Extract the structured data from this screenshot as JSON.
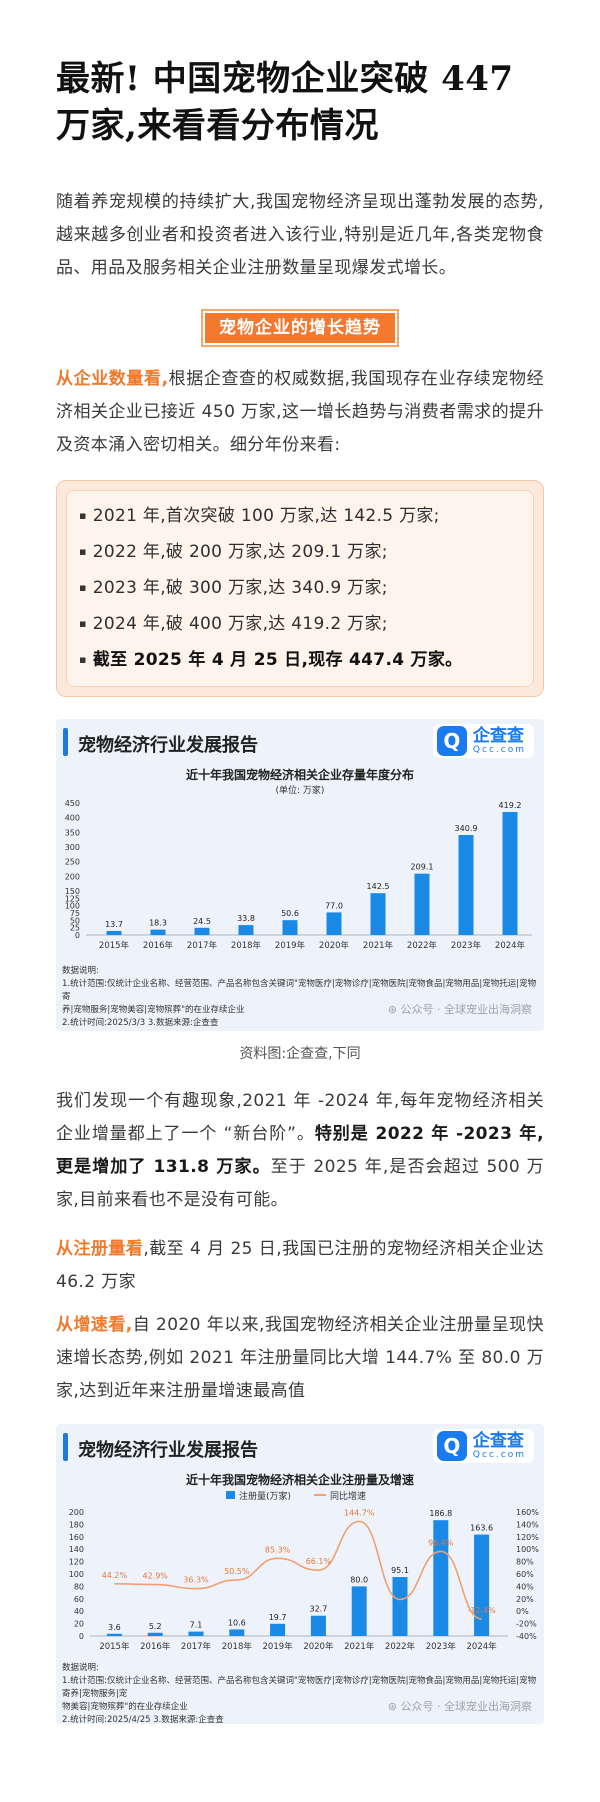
{
  "title": "最新! 中国宠物企业突破 447 万家,来看看分布情况",
  "intro": "随着养宠规模的持续扩大,我国宠物经济呈现出蓬勃发展的态势,越来越多创业者和投资者进入该行业,特别是近几年,各类宠物食品、用品及服务相关企业注册数量呈现爆发式增长。",
  "section_title": "宠物企业的增长趋势",
  "para_count": {
    "lead": "从企业数量看,",
    "text": "根据企查查的权威数据,我国现存在业存续宠物经济相关企业已接近 450 万家,这一增长趋势与消费者需求的提升及资本涌入密切相关。细分年份来看:"
  },
  "stats": [
    "2021 年,首次突破 100 万家,达 142.5 万家;",
    "2022 年,破 200 万家,达 209.1 万家;",
    "2023 年,破 300 万家,达 340.9 万家;",
    "2024 年,破 400 万家,达 419.2 万家;",
    "截至 2025 年 4 月 25 日,现存 447.4 万家。"
  ],
  "figure1": {
    "header": "宠物经济行业发展报告",
    "logo_cn": "企查查",
    "logo_en": "Qcc.com",
    "logo_mark": "Q",
    "notes": [
      "数据说明:",
      "1.统计范围:仅统计企业名称、经营范围、产品名称包含关键词\"宠物医疗|宠物诊疗|宠物医院|宠物食品|宠物用品|宠物托运|宠物寄",
      "养|宠物服务|宠物美容|宠物殡葬\"的在业存续企业",
      "2.统计时间:2025/3/3     3.数据来源:企查查"
    ],
    "watermark": "公众号 · 全球宠业出海洞察"
  },
  "caption1": "资料图:企查查,下同",
  "para_phase": {
    "text1": "我们发现一个有趣现象,2021 年 -2024 年,每年宠物经济相关企业增量都上了一个 “新台阶”。",
    "bold": "特别是 2022 年 -2023 年,更是增加了 131.8 万家。",
    "text2": "至于 2025 年,是否会超过 500 万家,目前来看也不是没有可能。"
  },
  "para_reg": {
    "lead": "从注册量看",
    "text": ",截至 4 月 25 日,我国已注册的宠物经济相关企业达 46.2 万家"
  },
  "para_growth": {
    "lead": "从增速看,",
    "text": "自 2020 年以来,我国宠物经济相关企业注册量呈现快速增长态势,例如 2021 年注册量同比大增 144.7% 至 80.0 万家,达到近年来注册量增速最高值"
  },
  "figure2": {
    "header": "宠物经济行业发展报告",
    "logo_cn": "企查查",
    "logo_en": "Qcc.com",
    "logo_mark": "Q",
    "notes": [
      "数据说明:",
      "1.统计范围:仅统计企业名称、经营范围、产品名称包含关键词\"宠物医疗|宠物诊疗|宠物医院|宠物食品|宠物用品|宠物托运|宠物寄养|宠物服务|宠",
      "物美容|宠物殡葬\"的在业存续企业",
      "2.统计时间:2025/4/25     3.数据来源:企查查"
    ],
    "watermark": "公众号 · 全球宠业出海洞察"
  },
  "colors": {
    "accent": "#f07a2c",
    "bar": "#1a8ae6",
    "line": "#f0a070"
  },
  "chart_data": [
    {
      "type": "bar",
      "title": "近十年我国宠物经济相关企业存量年度分布",
      "subtitle": "(单位: 万家)",
      "categories": [
        "2015年",
        "2016年",
        "2017年",
        "2018年",
        "2019年",
        "2020年",
        "2021年",
        "2022年",
        "2023年",
        "2024年"
      ],
      "values": [
        13.7,
        18.3,
        24.5,
        33.8,
        50.6,
        77.0,
        142.5,
        209.1,
        340.9,
        419.2
      ],
      "labels": [
        "13.7",
        "18.3",
        "24.5",
        "33.8",
        "50.6",
        "77.0",
        "142.5",
        "209.1",
        "340.9",
        "419.2"
      ],
      "ylim": [
        0,
        450
      ],
      "yticks": [
        0,
        25,
        50,
        75,
        100,
        125,
        150,
        200,
        250,
        300,
        350,
        400,
        450
      ],
      "grid": false
    },
    {
      "type": "bar",
      "title": "近十年我国宠物经济相关企业注册量及增速",
      "categories": [
        "2015年",
        "2016年",
        "2017年",
        "2018年",
        "2019年",
        "2020年",
        "2021年",
        "2022年",
        "2023年",
        "2024年"
      ],
      "series": [
        {
          "name": "注册量(万家)",
          "type": "bar",
          "values": [
            3.6,
            5.2,
            7.1,
            10.6,
            19.7,
            32.7,
            80.0,
            95.1,
            186.8,
            163.6
          ],
          "labels": [
            "3.6",
            "5.2",
            "7.1",
            "10.6",
            "19.7",
            "32.7",
            "80.0",
            "95.1",
            "186.8",
            "163.6"
          ]
        },
        {
          "name": "同比增速",
          "type": "line",
          "values": [
            44.2,
            42.9,
            36.3,
            50.5,
            85.3,
            66.1,
            144.7,
            18.9,
            96.4,
            -12.4
          ],
          "labels": [
            "44.2%",
            "42.9%",
            "36.3%",
            "50.5%",
            "85.3%",
            "66.1%",
            "144.7%",
            "",
            "96.4%",
            "-12.4%"
          ]
        }
      ],
      "ylim": [
        0,
        200
      ],
      "yticks": [
        0,
        20,
        40,
        60,
        80,
        100,
        120,
        140,
        160,
        180,
        200
      ],
      "y2lim": [
        -40,
        160
      ],
      "y2ticks": [
        "-40%",
        "-20%",
        "0%",
        "20%",
        "40%",
        "60%",
        "80%",
        "100%",
        "120%",
        "140%",
        "160%"
      ],
      "legend": "top-center",
      "grid": false
    }
  ]
}
